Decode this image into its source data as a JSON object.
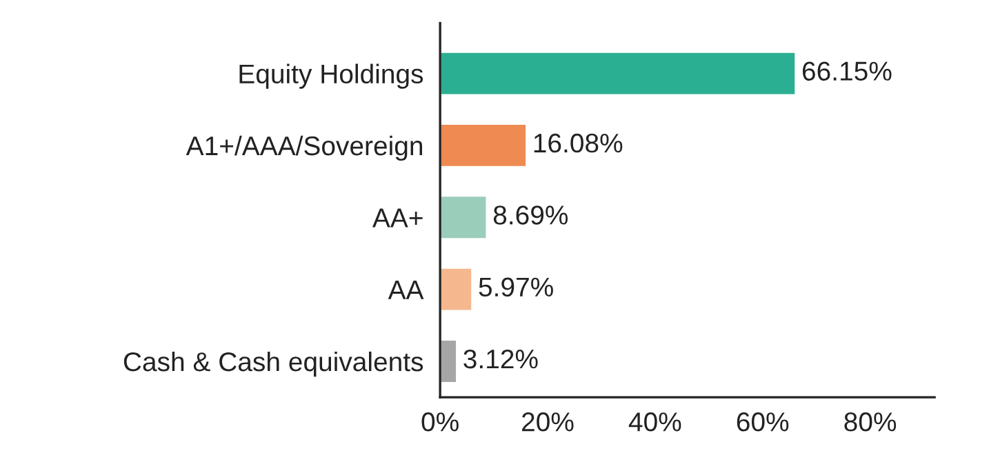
{
  "chart_data": {
    "type": "bar",
    "orientation": "horizontal",
    "categories": [
      "Equity Holdings",
      "A1+/AAA/Sovereign",
      "AA+",
      "AA",
      "Cash & Cash equivalents"
    ],
    "values": [
      66.15,
      16.08,
      8.69,
      5.97,
      3.12
    ],
    "colors": [
      "#2baf93",
      "#ee8a52",
      "#9bcdbb",
      "#f5b88e",
      "#a6a6a6"
    ],
    "value_labels": [
      "66.15%",
      "16.08%",
      "8.69%",
      "5.97%",
      "3.12%"
    ],
    "xlim": [
      0,
      92
    ],
    "xticks": [
      {
        "value": 0,
        "label": "0%"
      },
      {
        "value": 20,
        "label": "20%"
      },
      {
        "value": 40,
        "label": "40%"
      },
      {
        "value": 60,
        "label": "60%"
      },
      {
        "value": 80,
        "label": "80%"
      }
    ],
    "grid": false,
    "legend": false
  }
}
